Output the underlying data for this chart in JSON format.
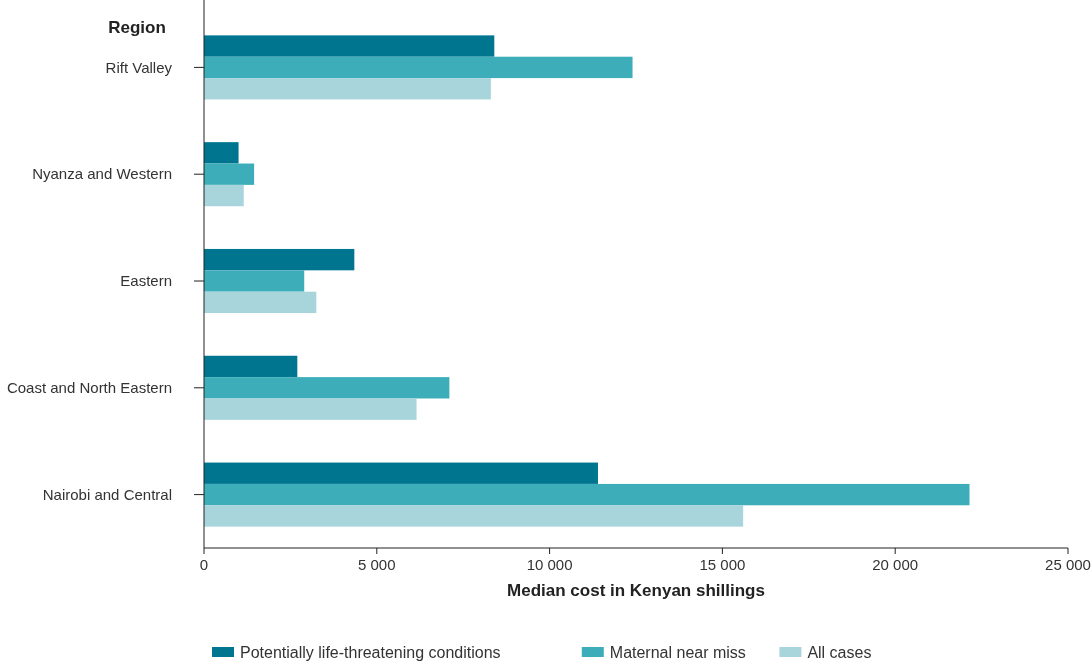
{
  "chart_data": {
    "type": "bar",
    "orientation": "horizontal",
    "ylabel": "Region",
    "xlabel": "Median cost in Kenyan shillings",
    "categories": [
      "Rift Valley",
      "Nyanza and Western",
      "Eastern",
      "Coast and North Eastern",
      "Nairobi and Central"
    ],
    "series": [
      {
        "name": "Potentially life-threatening conditions",
        "color": "#00758f",
        "values": [
          8400,
          1000,
          4350,
          2700,
          11400
        ]
      },
      {
        "name": "Maternal near miss",
        "color": "#3daeb9",
        "values": [
          12400,
          1450,
          2900,
          7100,
          22150
        ]
      },
      {
        "name": "All cases",
        "color": "#a8d5dc",
        "values": [
          8300,
          1150,
          3250,
          6150,
          15600
        ]
      }
    ],
    "xlim": [
      0,
      25000
    ],
    "xticks": [
      0,
      {
        "value": 5000,
        "label": "5 000"
      },
      {
        "value": 10000,
        "label": "10 000"
      },
      {
        "value": 15000,
        "label": "15 000"
      },
      {
        "value": 20000,
        "label": "20 000"
      },
      {
        "value": 25000,
        "label": "25 000"
      }
    ],
    "grid": false,
    "legend": "bottom"
  }
}
